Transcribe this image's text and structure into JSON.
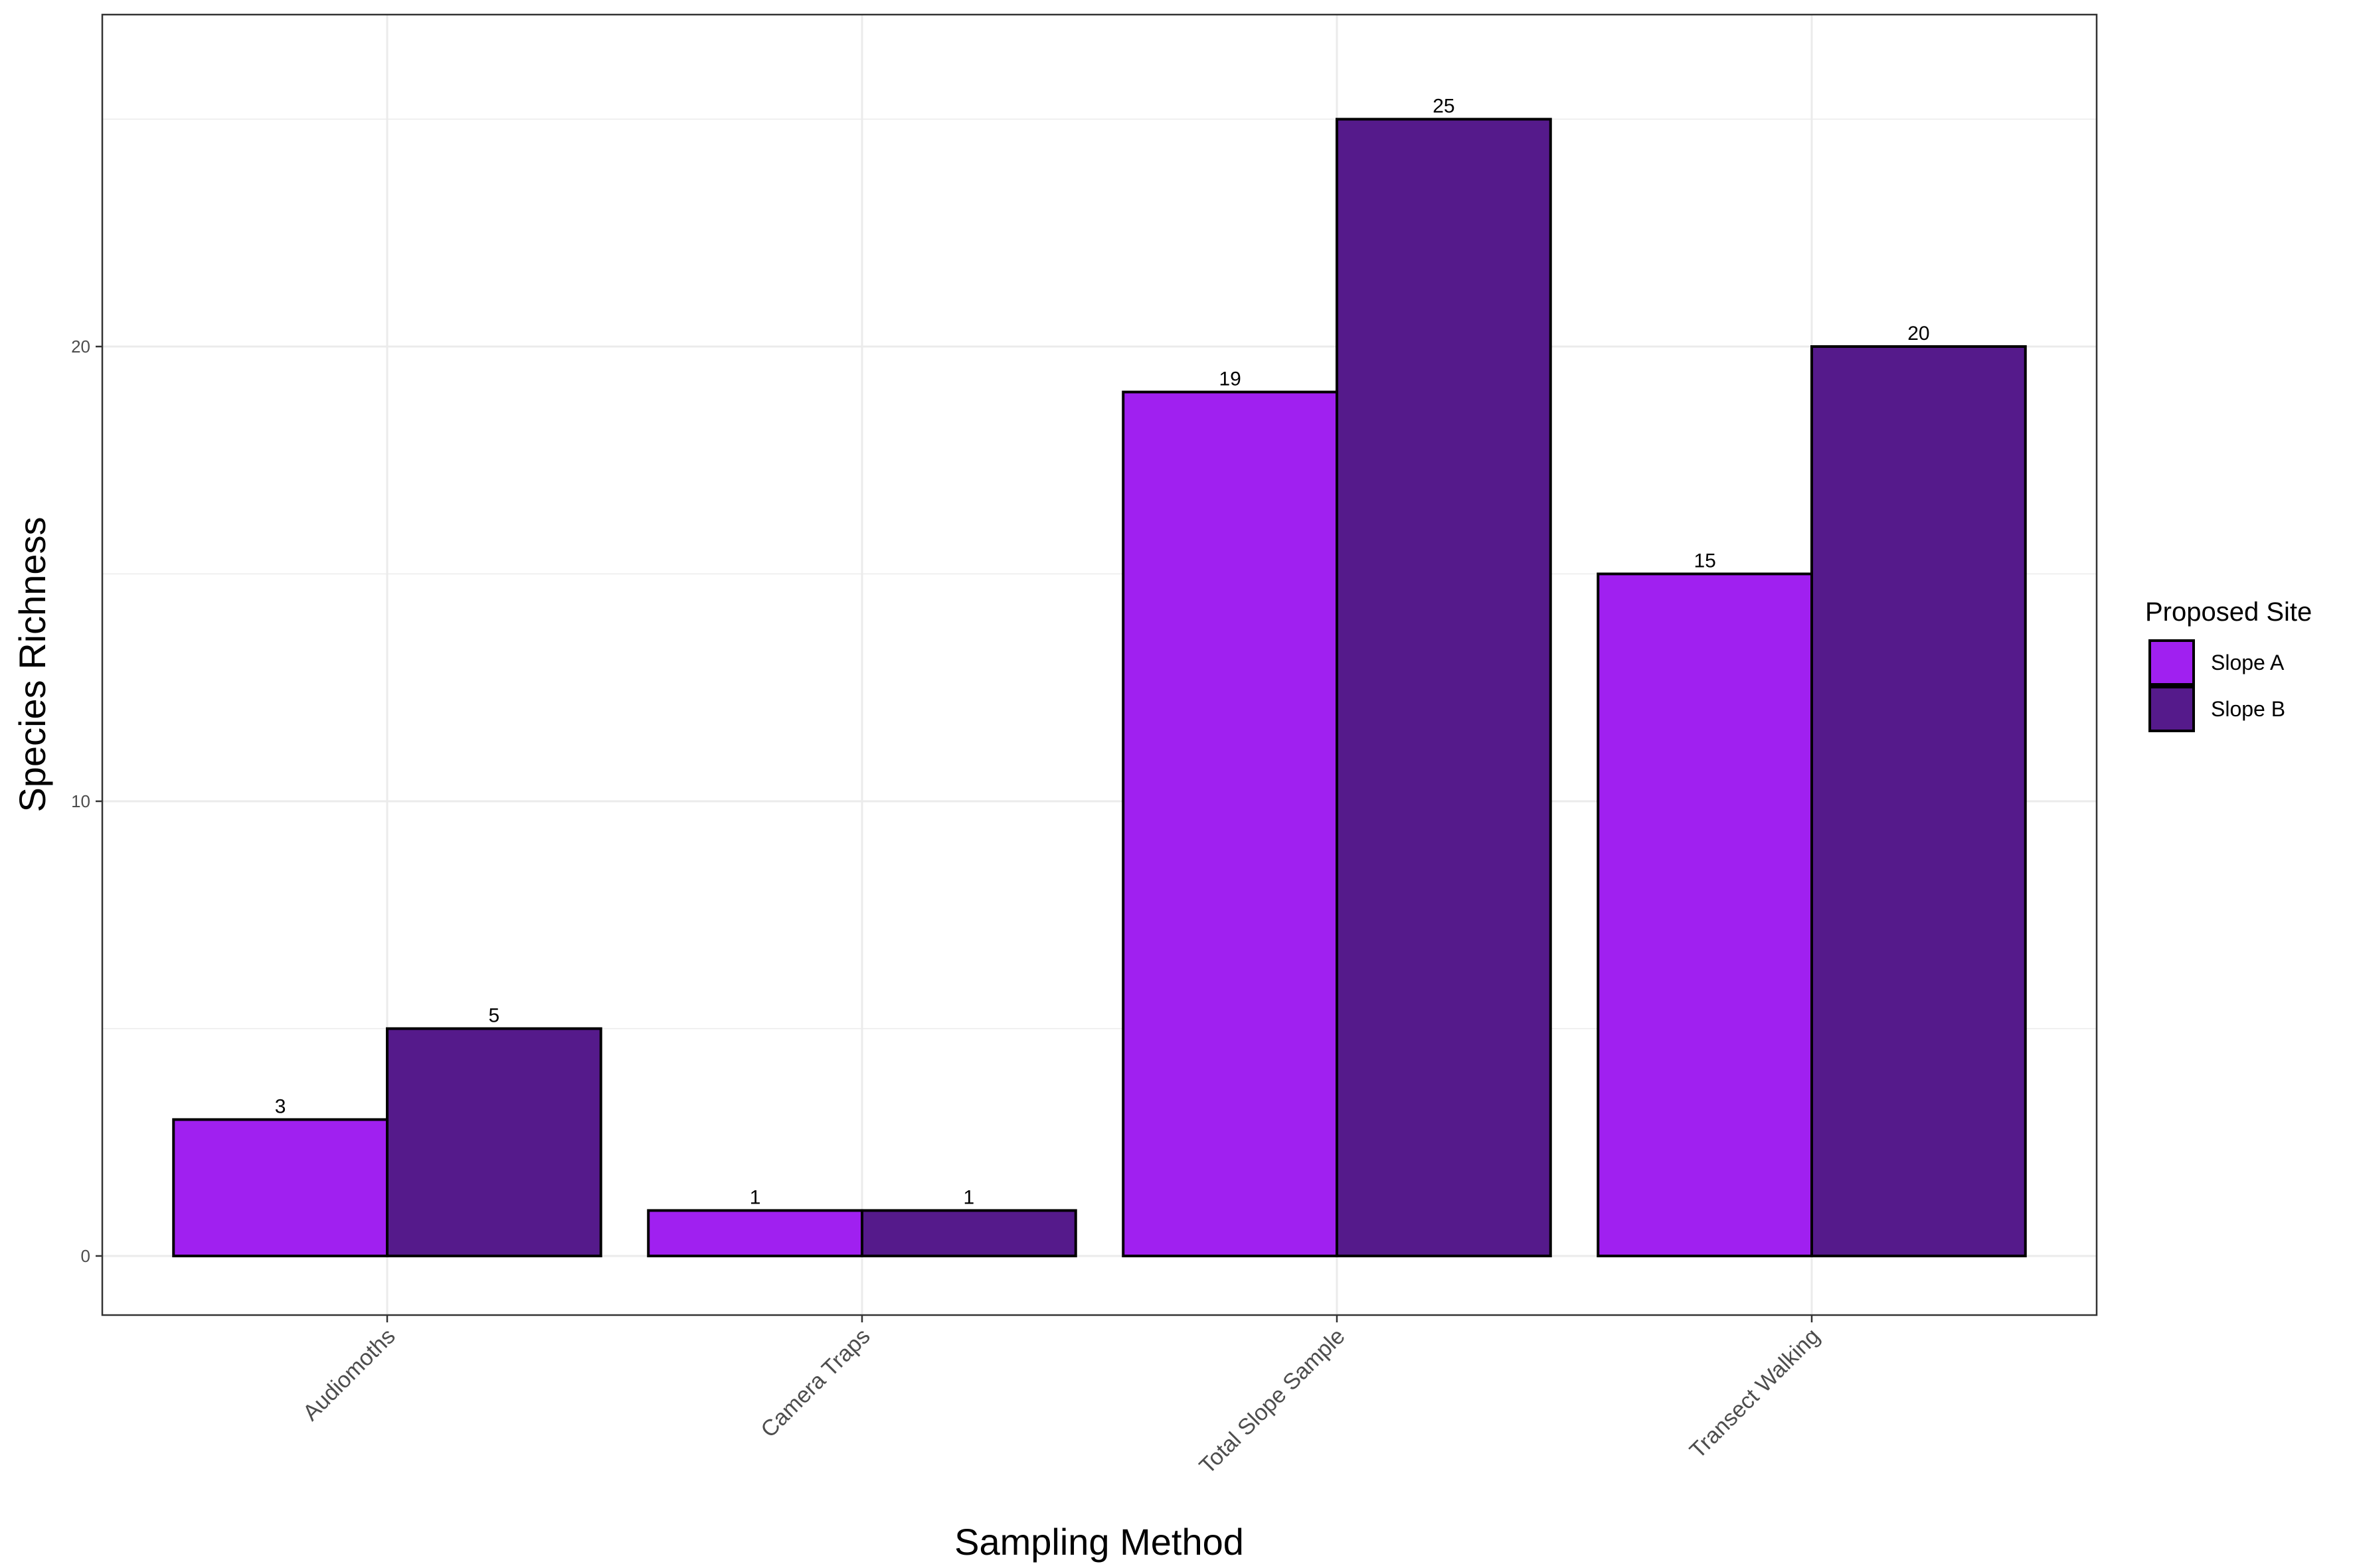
{
  "chart_data": {
    "type": "bar",
    "xlabel": "Sampling Method",
    "ylabel": "Species Richness",
    "categories": [
      "Audiomoths",
      "Camera Traps",
      "Total Slope Sample",
      "Transect Walking"
    ],
    "series": [
      {
        "name": "Slope A",
        "color": "#a020f0",
        "values": [
          3,
          1,
          19,
          15
        ]
      },
      {
        "name": "Slope B",
        "color": "#551a8b",
        "values": [
          5,
          1,
          25,
          20
        ]
      }
    ],
    "ylim": [
      -1.3,
      27.3
    ],
    "yticks": [
      0,
      10,
      20
    ],
    "yticks_minor": [
      5,
      15,
      25
    ],
    "grid": true,
    "bar_outline": "#000000",
    "legend": {
      "title": "Proposed Site",
      "position": "right"
    }
  }
}
